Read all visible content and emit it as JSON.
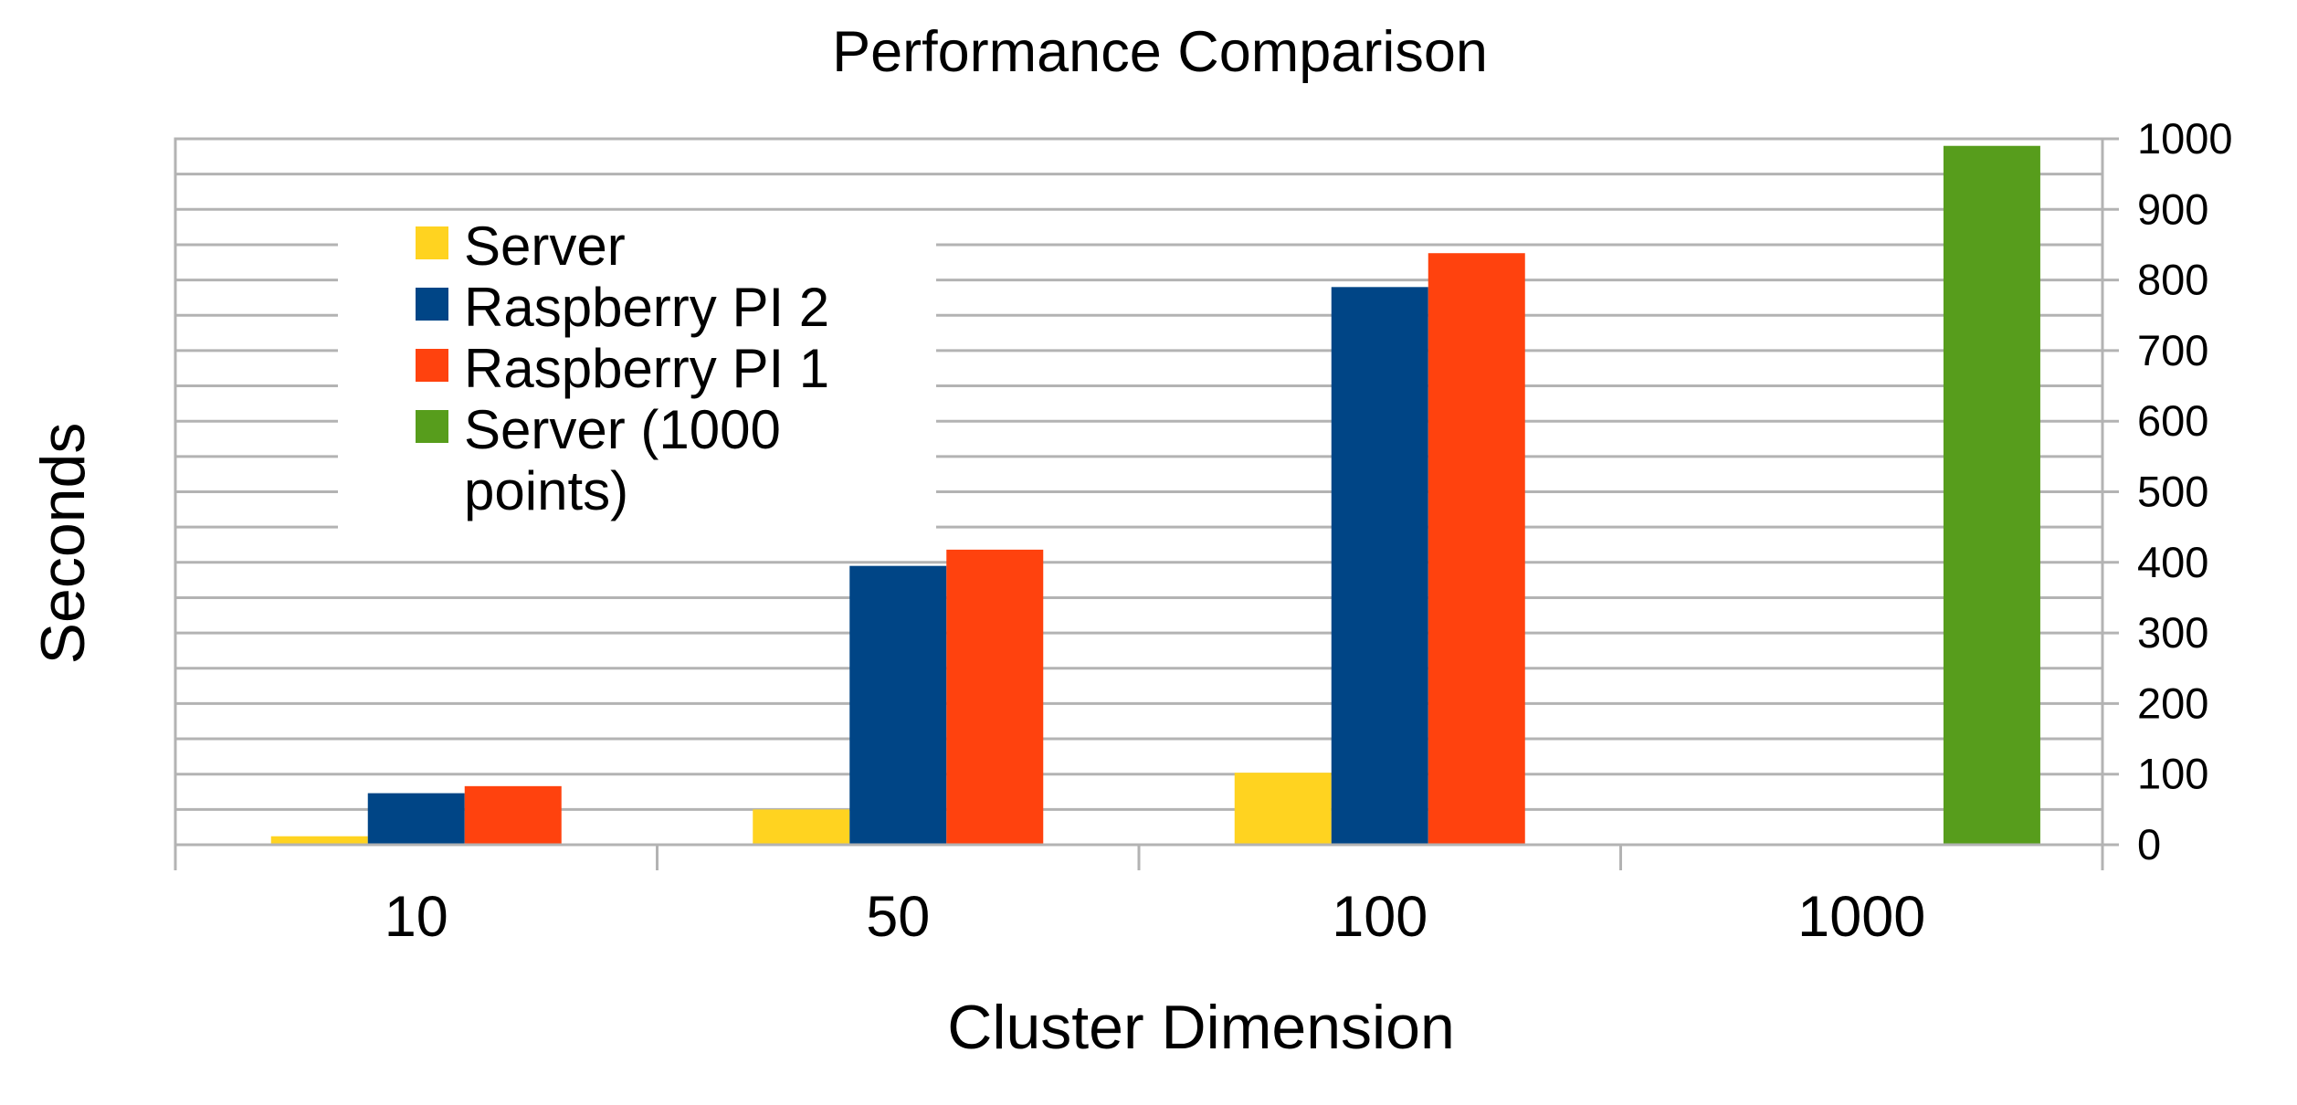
{
  "chart_data": {
    "type": "bar",
    "title": "Performance Comparison",
    "xlabel": "Cluster Dimension",
    "ylabel": "Seconds",
    "categories": [
      "10",
      "50",
      "100",
      "1000"
    ],
    "series": [
      {
        "name": "Server",
        "color": "#FFD320",
        "values": [
          12,
          50,
          102,
          null
        ]
      },
      {
        "name": "Raspberry PI 2",
        "color": "#004586",
        "values": [
          73,
          395,
          790,
          null
        ]
      },
      {
        "name": "Raspberry PI 1",
        "color": "#FF420E",
        "values": [
          83,
          418,
          838,
          null
        ]
      },
      {
        "name": "Server (1000 points)",
        "color": "#579D1C",
        "values": [
          null,
          null,
          null,
          990
        ]
      }
    ],
    "legend_lines": [
      [
        "Server"
      ],
      [
        "Raspberry PI 2"
      ],
      [
        "Raspberry PI 1"
      ],
      [
        "Server (1000",
        "points)"
      ]
    ],
    "ylim": [
      0,
      1000
    ],
    "yticks": [
      0,
      100,
      200,
      300,
      400,
      500,
      600,
      700,
      800,
      900,
      1000
    ],
    "y_axis_side": "right",
    "grid": true,
    "legend_position": "upper-left inside plot"
  }
}
